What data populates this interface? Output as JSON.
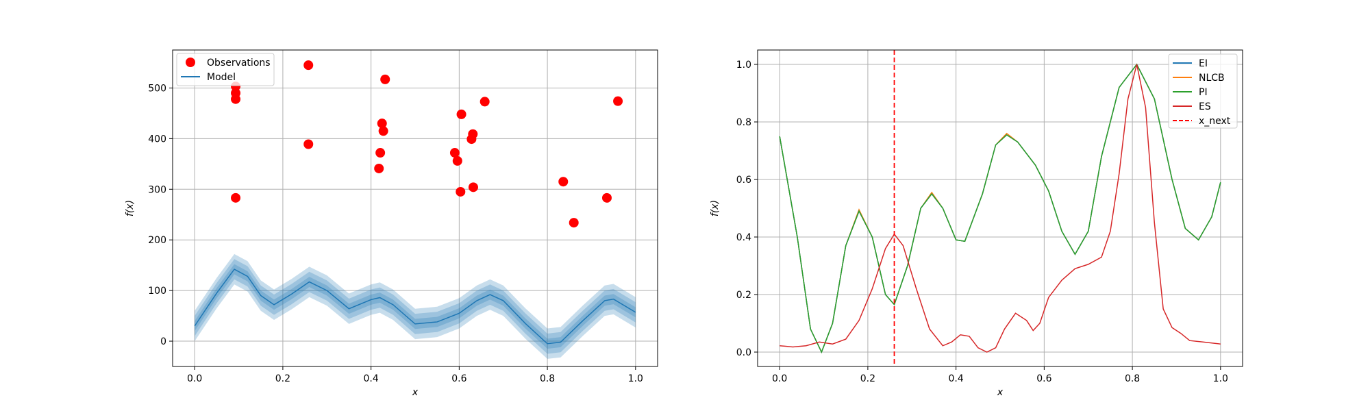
{
  "chart_data": [
    {
      "type": "scatter",
      "xlabel": "x",
      "ylabel": "f(x)",
      "xlim": [
        -0.05,
        1.05
      ],
      "ylim": [
        -50,
        575
      ],
      "xticks": [
        "0.0",
        "0.2",
        "0.4",
        "0.6",
        "0.8",
        "1.0"
      ],
      "yticks": [
        "0",
        "100",
        "200",
        "300",
        "400",
        "500"
      ],
      "grid": true,
      "legend_position": "top-left",
      "legend": [
        "Observations",
        "Model"
      ],
      "colors": {
        "observations": "#ff0000",
        "model": "#1f77b4"
      },
      "series": [
        {
          "name": "Observations",
          "type": "scatter",
          "points": [
            {
              "x": 0.093,
              "y": 503
            },
            {
              "x": 0.093,
              "y": 490
            },
            {
              "x": 0.093,
              "y": 478
            },
            {
              "x": 0.093,
              "y": 283
            },
            {
              "x": 0.258,
              "y": 545
            },
            {
              "x": 0.258,
              "y": 389
            },
            {
              "x": 0.432,
              "y": 517
            },
            {
              "x": 0.425,
              "y": 430
            },
            {
              "x": 0.428,
              "y": 415
            },
            {
              "x": 0.421,
              "y": 372
            },
            {
              "x": 0.418,
              "y": 341
            },
            {
              "x": 0.605,
              "y": 448
            },
            {
              "x": 0.631,
              "y": 409
            },
            {
              "x": 0.628,
              "y": 399
            },
            {
              "x": 0.59,
              "y": 372
            },
            {
              "x": 0.596,
              "y": 356
            },
            {
              "x": 0.632,
              "y": 304
            },
            {
              "x": 0.603,
              "y": 295
            },
            {
              "x": 0.658,
              "y": 473
            },
            {
              "x": 0.836,
              "y": 315
            },
            {
              "x": 0.86,
              "y": 234
            },
            {
              "x": 0.935,
              "y": 283
            },
            {
              "x": 0.96,
              "y": 474
            }
          ]
        },
        {
          "name": "Model",
          "type": "line",
          "points": [
            {
              "x": 0.0,
              "y": 30
            },
            {
              "x": 0.05,
              "y": 95
            },
            {
              "x": 0.09,
              "y": 142
            },
            {
              "x": 0.12,
              "y": 128
            },
            {
              "x": 0.15,
              "y": 90
            },
            {
              "x": 0.18,
              "y": 72
            },
            {
              "x": 0.22,
              "y": 93
            },
            {
              "x": 0.26,
              "y": 117
            },
            {
              "x": 0.3,
              "y": 100
            },
            {
              "x": 0.35,
              "y": 64
            },
            {
              "x": 0.4,
              "y": 82
            },
            {
              "x": 0.42,
              "y": 86
            },
            {
              "x": 0.45,
              "y": 72
            },
            {
              "x": 0.5,
              "y": 34
            },
            {
              "x": 0.55,
              "y": 38
            },
            {
              "x": 0.6,
              "y": 55
            },
            {
              "x": 0.64,
              "y": 80
            },
            {
              "x": 0.67,
              "y": 92
            },
            {
              "x": 0.7,
              "y": 80
            },
            {
              "x": 0.75,
              "y": 35
            },
            {
              "x": 0.8,
              "y": -5
            },
            {
              "x": 0.83,
              "y": -2
            },
            {
              "x": 0.88,
              "y": 40
            },
            {
              "x": 0.93,
              "y": 80
            },
            {
              "x": 0.95,
              "y": 83
            },
            {
              "x": 1.0,
              "y": 57
            }
          ]
        }
      ],
      "uncertainty_band_half_widths": [
        10,
        20,
        30
      ]
    },
    {
      "type": "line",
      "xlabel": "x",
      "ylabel": "f(x)",
      "xlim": [
        -0.05,
        1.05
      ],
      "ylim": [
        -0.05,
        1.05
      ],
      "xticks": [
        "0.0",
        "0.2",
        "0.4",
        "0.6",
        "0.8",
        "1.0"
      ],
      "yticks": [
        "0.0",
        "0.2",
        "0.4",
        "0.6",
        "0.8",
        "1.0"
      ],
      "grid": true,
      "legend_position": "top-right",
      "legend": [
        "EI",
        "NLCB",
        "PI",
        "ES",
        "x_next"
      ],
      "colors": {
        "EI": "#1f77b4",
        "NLCB": "#ff7f0e",
        "PI": "#2ca02c",
        "ES": "#d62728",
        "x_next": "#ff0000"
      },
      "x_next": 0.26,
      "series": [
        {
          "name": "NLCB",
          "points": [
            {
              "x": 0.0,
              "y": 0.75
            },
            {
              "x": 0.04,
              "y": 0.4
            },
            {
              "x": 0.07,
              "y": 0.08
            },
            {
              "x": 0.095,
              "y": 0.0
            },
            {
              "x": 0.12,
              "y": 0.1
            },
            {
              "x": 0.15,
              "y": 0.37
            },
            {
              "x": 0.18,
              "y": 0.495
            },
            {
              "x": 0.21,
              "y": 0.4
            },
            {
              "x": 0.24,
              "y": 0.2
            },
            {
              "x": 0.26,
              "y": 0.165
            },
            {
              "x": 0.29,
              "y": 0.3
            },
            {
              "x": 0.32,
              "y": 0.5
            },
            {
              "x": 0.345,
              "y": 0.555
            },
            {
              "x": 0.37,
              "y": 0.5
            },
            {
              "x": 0.4,
              "y": 0.39
            },
            {
              "x": 0.42,
              "y": 0.385
            },
            {
              "x": 0.46,
              "y": 0.55
            },
            {
              "x": 0.49,
              "y": 0.72
            },
            {
              "x": 0.515,
              "y": 0.76
            },
            {
              "x": 0.54,
              "y": 0.73
            },
            {
              "x": 0.58,
              "y": 0.65
            },
            {
              "x": 0.61,
              "y": 0.56
            },
            {
              "x": 0.64,
              "y": 0.42
            },
            {
              "x": 0.67,
              "y": 0.34
            },
            {
              "x": 0.7,
              "y": 0.42
            },
            {
              "x": 0.73,
              "y": 0.68
            },
            {
              "x": 0.77,
              "y": 0.92
            },
            {
              "x": 0.81,
              "y": 1.0
            },
            {
              "x": 0.85,
              "y": 0.88
            },
            {
              "x": 0.89,
              "y": 0.6
            },
            {
              "x": 0.92,
              "y": 0.43
            },
            {
              "x": 0.95,
              "y": 0.39
            },
            {
              "x": 0.98,
              "y": 0.47
            },
            {
              "x": 1.0,
              "y": 0.59
            }
          ]
        },
        {
          "name": "EI",
          "points": [
            {
              "x": 0.0,
              "y": 0.75
            },
            {
              "x": 0.04,
              "y": 0.4
            },
            {
              "x": 0.07,
              "y": 0.08
            },
            {
              "x": 0.095,
              "y": 0.0
            },
            {
              "x": 0.12,
              "y": 0.1
            },
            {
              "x": 0.15,
              "y": 0.37
            },
            {
              "x": 0.18,
              "y": 0.49
            },
            {
              "x": 0.21,
              "y": 0.4
            },
            {
              "x": 0.24,
              "y": 0.2
            },
            {
              "x": 0.26,
              "y": 0.165
            },
            {
              "x": 0.29,
              "y": 0.3
            },
            {
              "x": 0.32,
              "y": 0.5
            },
            {
              "x": 0.345,
              "y": 0.55
            },
            {
              "x": 0.37,
              "y": 0.5
            },
            {
              "x": 0.4,
              "y": 0.39
            },
            {
              "x": 0.42,
              "y": 0.385
            },
            {
              "x": 0.46,
              "y": 0.55
            },
            {
              "x": 0.49,
              "y": 0.72
            },
            {
              "x": 0.515,
              "y": 0.755
            },
            {
              "x": 0.54,
              "y": 0.73
            },
            {
              "x": 0.58,
              "y": 0.65
            },
            {
              "x": 0.61,
              "y": 0.56
            },
            {
              "x": 0.64,
              "y": 0.42
            },
            {
              "x": 0.67,
              "y": 0.34
            },
            {
              "x": 0.7,
              "y": 0.42
            },
            {
              "x": 0.73,
              "y": 0.68
            },
            {
              "x": 0.77,
              "y": 0.92
            },
            {
              "x": 0.81,
              "y": 1.0
            },
            {
              "x": 0.85,
              "y": 0.88
            },
            {
              "x": 0.89,
              "y": 0.6
            },
            {
              "x": 0.92,
              "y": 0.43
            },
            {
              "x": 0.95,
              "y": 0.39
            },
            {
              "x": 0.98,
              "y": 0.47
            },
            {
              "x": 1.0,
              "y": 0.59
            }
          ]
        },
        {
          "name": "PI",
          "points": [
            {
              "x": 0.0,
              "y": 0.75
            },
            {
              "x": 0.04,
              "y": 0.4
            },
            {
              "x": 0.07,
              "y": 0.08
            },
            {
              "x": 0.095,
              "y": 0.0
            },
            {
              "x": 0.12,
              "y": 0.1
            },
            {
              "x": 0.15,
              "y": 0.37
            },
            {
              "x": 0.18,
              "y": 0.49
            },
            {
              "x": 0.21,
              "y": 0.4
            },
            {
              "x": 0.24,
              "y": 0.2
            },
            {
              "x": 0.26,
              "y": 0.165
            },
            {
              "x": 0.29,
              "y": 0.3
            },
            {
              "x": 0.32,
              "y": 0.5
            },
            {
              "x": 0.345,
              "y": 0.55
            },
            {
              "x": 0.37,
              "y": 0.5
            },
            {
              "x": 0.4,
              "y": 0.39
            },
            {
              "x": 0.42,
              "y": 0.385
            },
            {
              "x": 0.46,
              "y": 0.55
            },
            {
              "x": 0.49,
              "y": 0.72
            },
            {
              "x": 0.515,
              "y": 0.755
            },
            {
              "x": 0.54,
              "y": 0.73
            },
            {
              "x": 0.58,
              "y": 0.65
            },
            {
              "x": 0.61,
              "y": 0.56
            },
            {
              "x": 0.64,
              "y": 0.42
            },
            {
              "x": 0.67,
              "y": 0.34
            },
            {
              "x": 0.7,
              "y": 0.42
            },
            {
              "x": 0.73,
              "y": 0.68
            },
            {
              "x": 0.77,
              "y": 0.92
            },
            {
              "x": 0.81,
              "y": 1.0
            },
            {
              "x": 0.85,
              "y": 0.88
            },
            {
              "x": 0.89,
              "y": 0.6
            },
            {
              "x": 0.92,
              "y": 0.43
            },
            {
              "x": 0.95,
              "y": 0.39
            },
            {
              "x": 0.98,
              "y": 0.47
            },
            {
              "x": 1.0,
              "y": 0.59
            }
          ]
        },
        {
          "name": "ES",
          "points": [
            {
              "x": 0.0,
              "y": 0.022
            },
            {
              "x": 0.03,
              "y": 0.018
            },
            {
              "x": 0.06,
              "y": 0.022
            },
            {
              "x": 0.09,
              "y": 0.035
            },
            {
              "x": 0.12,
              "y": 0.028
            },
            {
              "x": 0.15,
              "y": 0.045
            },
            {
              "x": 0.18,
              "y": 0.11
            },
            {
              "x": 0.21,
              "y": 0.22
            },
            {
              "x": 0.24,
              "y": 0.36
            },
            {
              "x": 0.26,
              "y": 0.41
            },
            {
              "x": 0.28,
              "y": 0.37
            },
            {
              "x": 0.31,
              "y": 0.22
            },
            {
              "x": 0.34,
              "y": 0.08
            },
            {
              "x": 0.37,
              "y": 0.022
            },
            {
              "x": 0.39,
              "y": 0.035
            },
            {
              "x": 0.41,
              "y": 0.06
            },
            {
              "x": 0.43,
              "y": 0.055
            },
            {
              "x": 0.45,
              "y": 0.015
            },
            {
              "x": 0.47,
              "y": 0.0
            },
            {
              "x": 0.49,
              "y": 0.015
            },
            {
              "x": 0.51,
              "y": 0.08
            },
            {
              "x": 0.535,
              "y": 0.135
            },
            {
              "x": 0.56,
              "y": 0.11
            },
            {
              "x": 0.575,
              "y": 0.075
            },
            {
              "x": 0.59,
              "y": 0.1
            },
            {
              "x": 0.61,
              "y": 0.19
            },
            {
              "x": 0.64,
              "y": 0.25
            },
            {
              "x": 0.67,
              "y": 0.29
            },
            {
              "x": 0.7,
              "y": 0.305
            },
            {
              "x": 0.73,
              "y": 0.33
            },
            {
              "x": 0.75,
              "y": 0.42
            },
            {
              "x": 0.77,
              "y": 0.62
            },
            {
              "x": 0.79,
              "y": 0.88
            },
            {
              "x": 0.81,
              "y": 1.0
            },
            {
              "x": 0.83,
              "y": 0.85
            },
            {
              "x": 0.85,
              "y": 0.45
            },
            {
              "x": 0.87,
              "y": 0.15
            },
            {
              "x": 0.89,
              "y": 0.085
            },
            {
              "x": 0.91,
              "y": 0.065
            },
            {
              "x": 0.93,
              "y": 0.04
            },
            {
              "x": 0.96,
              "y": 0.035
            },
            {
              "x": 1.0,
              "y": 0.028
            }
          ]
        }
      ]
    }
  ]
}
